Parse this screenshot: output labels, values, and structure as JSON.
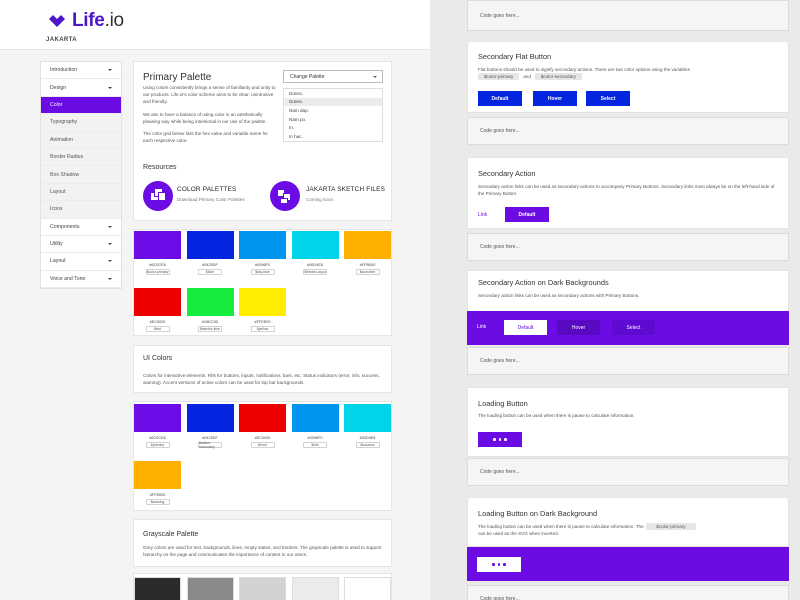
{
  "brand": {
    "name_main": "Life",
    "name_suffix": ".io",
    "sub": "JAKARTA",
    "color": "#4b17c9"
  },
  "nav": {
    "items": [
      {
        "label": "Introduction",
        "caret": true,
        "style": "normal"
      },
      {
        "label": "Design",
        "caret": true,
        "style": "normal"
      },
      {
        "label": "Color",
        "caret": false,
        "style": "active"
      },
      {
        "label": "Typography",
        "caret": false,
        "style": "sub"
      },
      {
        "label": "Animation",
        "caret": false,
        "style": "sub"
      },
      {
        "label": "Border Radius",
        "caret": false,
        "style": "sub"
      },
      {
        "label": "Box Shadow",
        "caret": false,
        "style": "sub"
      },
      {
        "label": "Layout",
        "caret": false,
        "style": "sub"
      },
      {
        "label": "Icons",
        "caret": false,
        "style": "sub"
      },
      {
        "label": "Components",
        "caret": true,
        "style": "normal"
      },
      {
        "label": "Utility",
        "caret": true,
        "style": "normal"
      },
      {
        "label": "Layout",
        "caret": true,
        "style": "normal"
      },
      {
        "label": "Voice and Tone",
        "caret": true,
        "style": "normal"
      }
    ]
  },
  "primary": {
    "title": "Primary Palette",
    "p1": "Using colors consistently brings a sense of familiarity and unity to our products. Life.io's color scheme aims to be clear, unintrusive and friendly.",
    "p2": "We aim to have a balance of using color in an aesthetically pleasing way while being intentional in our use of the palette.",
    "p3": "The color grid below lists the hex value and variable name for each respective color.",
    "dropdown": {
      "value": "Change Palette",
      "options": [
        "Donec.",
        "Donec.",
        "Nam dap.",
        "Nam po.",
        "In.",
        "In hac."
      ],
      "highlighted": 1
    }
  },
  "resources": {
    "title": "Resources",
    "items": [
      {
        "title": "COLOR PALETTES",
        "sub": "Download Primary Color Palettes"
      },
      {
        "title": "JAKARTA SKETCH FILES",
        "sub": "Coming soon"
      }
    ]
  },
  "palette_swatches": [
    {
      "color": "#6c0ce6",
      "hex": "#6C0CE6",
      "var": "$color-primary"
    },
    {
      "color": "#0425df",
      "hex": "#0425DF",
      "var": "$blue"
    },
    {
      "color": "#0096f0",
      "hex": "#0096F0",
      "var": "$sky-blue"
    },
    {
      "color": "#00d4e8",
      "hex": "#00D4E8",
      "var": "$electric-aqua"
    },
    {
      "color": "#ffb000",
      "hex": "#FFB000",
      "var": "$sunshine"
    },
    {
      "color": "#ec0000",
      "hex": "#EC0000",
      "var": "$red"
    },
    {
      "color": "#16ec3d",
      "hex": "#16EC3D",
      "var": "$electric-lime"
    },
    {
      "color": "#ffee00",
      "hex": "#FFEE00",
      "var": "$yellow"
    }
  ],
  "ui_colors": {
    "title": "UI Colors",
    "text": "Colors for interactive elements. Fills for buttons, inputs, notifications, bars, etc. Status indicators (error, info, success, warning). Accent versions of active colors can be used for top bar backgrounds.",
    "swatches": [
      {
        "color": "#6c0ce6",
        "hex": "#6C0CE6",
        "var": "$primary"
      },
      {
        "color": "#0425df",
        "hex": "#0425DF",
        "var": "$action-secondary"
      },
      {
        "color": "#ec0000",
        "hex": "#EC0000",
        "var": "$error"
      },
      {
        "color": "#0096f0",
        "hex": "#0096F0",
        "var": "$info"
      },
      {
        "color": "#00d4e8",
        "hex": "#00D4E8",
        "var": "$success"
      },
      {
        "color": "#ffb000",
        "hex": "#FFB000",
        "var": "$warning"
      }
    ]
  },
  "grayscale": {
    "title": "Grayscale Palette",
    "text": "Grey colors are used for text, backgrounds, lines, empty states, and borders. The grayscale palette is used to support hierarchy on the page and communicates the importance of content to our users.",
    "colors": [
      "#2b2b2b",
      "#8a8a8a",
      "#d2d2d2",
      "#ebebeb",
      "#ffffff"
    ]
  },
  "right": {
    "code_placeholder": "Code goes here...",
    "sec_flat": {
      "title": "Secondary Flat Button",
      "text_a": "Flat buttons should be used to signify secondary actions.  There are two color options using the variables",
      "chip1": "$color-primary",
      "and": "and",
      "chip2": "$color-secondary",
      "buttons": [
        "Default",
        "Hover",
        "Select"
      ],
      "btn_color": "#0425df"
    },
    "sec_action": {
      "title": "Secondary Action",
      "text": "Secondary action links can be used as secondary actions to accompany Primary Buttons. Secondary links must always be on the left-hand side of the Primary Button.",
      "link": "Link",
      "button": "Default"
    },
    "sec_dark": {
      "title": "Secondary Action on Dark Backgrounds",
      "text": "Secondary action links can be used as secondary actions with Primary Buttons.",
      "link": "Link",
      "buttons": [
        "Default",
        "Hover",
        "Select"
      ]
    },
    "loading": {
      "title": "Loading Button",
      "text": "The loading button can be used when there is pause to calculate information."
    },
    "loading_dark": {
      "title": "Loading Button on Dark Background",
      "text": "The loading button can be used when there is pause to calculate information. The",
      "chip": "$color-primary",
      "text2": "can be used as the SVG when inverted."
    }
  }
}
